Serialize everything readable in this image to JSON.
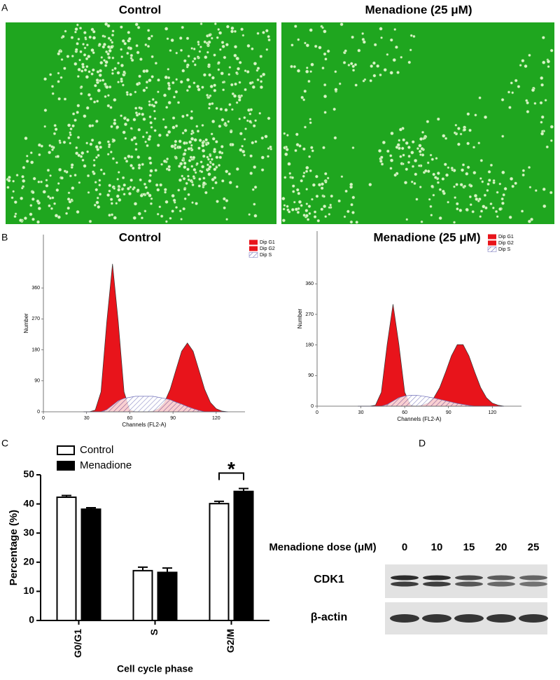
{
  "panel_labels": [
    "A",
    "B",
    "C",
    "D"
  ],
  "panel_a": {
    "titles": [
      "Control",
      "Menadione (25 μM)"
    ]
  },
  "blot": {
    "header": "Menadione dose (μM)",
    "doses": [
      0,
      10,
      15,
      20,
      25
    ],
    "rows": [
      "CDK1",
      "β-actin"
    ]
  },
  "chart_data": [
    {
      "type": "area",
      "title": "Control",
      "xlabel": "Channels (FL2-A)",
      "ylabel": "Number",
      "x": [
        28,
        32,
        36,
        40,
        44,
        48,
        52,
        56,
        60,
        64,
        68,
        72,
        76,
        80,
        84,
        88,
        92,
        96,
        100,
        104,
        108,
        112,
        116,
        120,
        124,
        128
      ],
      "series": [
        {
          "name": "Dip G1",
          "color": "#e8141b",
          "values": [
            0,
            0,
            5,
            58,
            261,
            430,
            261,
            58,
            5,
            0,
            0,
            0,
            0,
            0,
            0,
            0,
            0,
            0,
            0,
            0,
            0,
            0,
            0,
            0,
            0,
            0
          ]
        },
        {
          "name": "Dip G2",
          "color": "#e8141b",
          "values": [
            0,
            0,
            0,
            0,
            0,
            0,
            0,
            0,
            0,
            0,
            0,
            0,
            2,
            9,
            27,
            65,
            121,
            176,
            200,
            176,
            121,
            65,
            27,
            9,
            2,
            0
          ]
        },
        {
          "name": "Dip S",
          "color": "#6f6fb8",
          "hatch": true,
          "values": [
            0,
            0,
            0,
            0,
            6,
            19,
            32,
            39,
            42,
            45,
            45,
            45,
            45,
            42,
            39,
            35,
            28,
            22,
            15,
            9,
            4,
            0,
            0,
            0,
            0,
            0
          ]
        }
      ],
      "xlim": [
        0,
        140
      ],
      "xticks": [
        0,
        30,
        60,
        90,
        120
      ],
      "ylim": [
        0,
        515
      ],
      "yticks": [
        0,
        90,
        180,
        270,
        360
      ]
    },
    {
      "type": "area",
      "title": "Menadione (25 μM)",
      "xlabel": "Channels (FL2-A)",
      "ylabel": "Number",
      "x": [
        28,
        32,
        36,
        40,
        44,
        48,
        52,
        56,
        60,
        64,
        68,
        72,
        76,
        80,
        84,
        88,
        92,
        96,
        100,
        104,
        108,
        112,
        116,
        120,
        124,
        128
      ],
      "series": [
        {
          "name": "Dip G1",
          "color": "#e8141b",
          "values": [
            0,
            0,
            0,
            3,
            41,
            182,
            300,
            182,
            41,
            3,
            0,
            0,
            0,
            0,
            0,
            0,
            0,
            0,
            0,
            0,
            0,
            0,
            0,
            0,
            0,
            0
          ]
        },
        {
          "name": "Dip G2",
          "color": "#e8141b",
          "values": [
            0,
            0,
            0,
            0,
            0,
            0,
            0,
            0,
            0,
            0,
            0,
            3,
            9,
            25,
            55,
            100,
            148,
            181,
            181,
            148,
            100,
            55,
            25,
            9,
            3,
            0
          ]
        },
        {
          "name": "Dip S",
          "color": "#6f6fb8",
          "hatch": true,
          "values": [
            0,
            0,
            0,
            0,
            0,
            5,
            15,
            25,
            30,
            32,
            32,
            30,
            27,
            24,
            20,
            16,
            12,
            8,
            5,
            2,
            0,
            0,
            0,
            0,
            0,
            0
          ]
        }
      ],
      "xlim": [
        0,
        140
      ],
      "xticks": [
        0,
        30,
        60,
        90,
        120
      ],
      "ylim": [
        0,
        515
      ],
      "yticks": [
        0,
        90,
        180,
        270,
        360
      ]
    },
    {
      "type": "bar",
      "xlabel": "Cell cycle phase",
      "ylabel": "Percentage (%)",
      "categories": [
        "G0/G1",
        "S",
        "G2/M"
      ],
      "series": [
        {
          "name": "Control",
          "color": "#ffffff",
          "values": [
            42.3,
            17.1,
            40.1
          ],
          "errors": [
            0.6,
            1.2,
            0.8
          ]
        },
        {
          "name": "Menadione",
          "color": "#000000",
          "values": [
            38.2,
            16.5,
            44.3
          ],
          "errors": [
            0.5,
            1.5,
            1.0
          ]
        }
      ],
      "ylim": [
        0,
        50
      ],
      "yticks": [
        0,
        10,
        20,
        30,
        40,
        50
      ],
      "annotation": "*"
    }
  ]
}
